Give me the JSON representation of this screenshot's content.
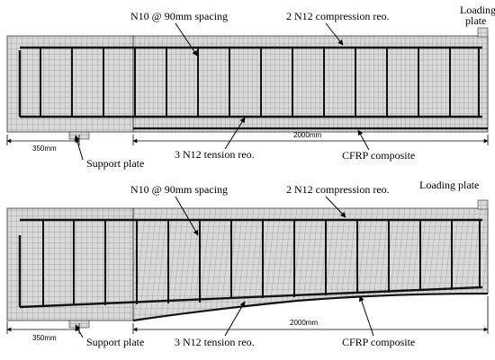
{
  "top_panel": {
    "label_stirrups": "N10 @ 90mm spacing",
    "label_compression": "2 N12 compression reo.",
    "label_loading": "Loading",
    "label_loading_2": "plate",
    "label_support": "Support plate",
    "label_tension": "3 N12 tension reo.",
    "label_cfrp": "CFRP composite",
    "dim_support": "350mm",
    "dim_span": "2000mm"
  },
  "bottom_panel": {
    "label_stirrups": "N10 @ 90mm spacing",
    "label_compression": "2 N12 compression reo.",
    "label_loading": "Loading plate",
    "label_support": "Support plate",
    "label_tension": "3 N12 tension reo.",
    "label_cfrp": "CFRP composite",
    "dim_support": "350mm",
    "dim_span": "2000mm"
  }
}
